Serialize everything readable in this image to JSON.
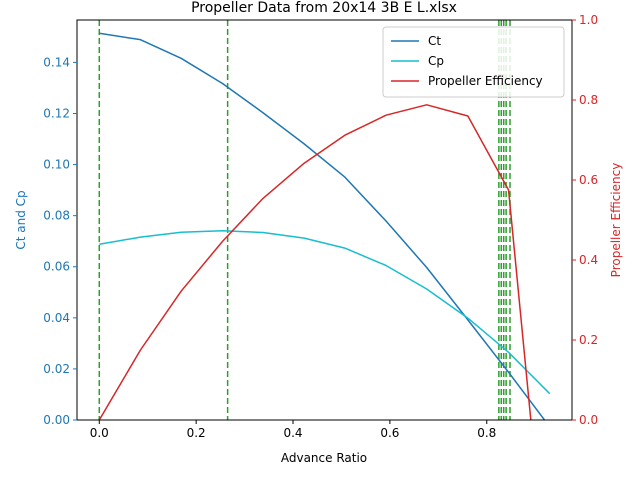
{
  "chart_data": {
    "type": "line",
    "title": "Propeller Data from 20x14 3B E L.xlsx",
    "xlabel": "Advance Ratio",
    "ylabel_left": "Ct and Cp",
    "ylabel_right": "Propeller Efficiency",
    "xlim": [
      -0.046,
      0.976
    ],
    "ylim_left": [
      0,
      0.1566
    ],
    "ylim_right": [
      0,
      1
    ],
    "x_ticks": [
      0.0,
      0.2,
      0.4,
      0.6,
      0.8
    ],
    "x_tick_labels": [
      "0.0",
      "0.2",
      "0.4",
      "0.6",
      "0.8"
    ],
    "y_left_ticks": [
      0.0,
      0.02,
      0.04,
      0.06,
      0.08,
      0.1,
      0.12,
      0.14
    ],
    "y_left_tick_labels": [
      "0.00",
      "0.02",
      "0.04",
      "0.06",
      "0.08",
      "0.10",
      "0.12",
      "0.14"
    ],
    "y_right_ticks": [
      0.0,
      0.2,
      0.4,
      0.6,
      0.8,
      1.0
    ],
    "y_right_tick_labels": [
      "0.0",
      "0.2",
      "0.4",
      "0.6",
      "0.8",
      "1.0"
    ],
    "grid": false,
    "legend_position": "upper-right",
    "colors": {
      "ct": "#1f77b4",
      "cp": "#17becf",
      "efficiency": "#d62728",
      "vlines": "#2ca02c",
      "left_axis": "#1f77b4",
      "right_axis": "#d62728",
      "text": "#000000"
    },
    "series": [
      {
        "name": "Ct",
        "axis": "left",
        "color": "#1f77b4",
        "x": [
          0.0,
          0.085,
          0.169,
          0.254,
          0.338,
          0.423,
          0.507,
          0.592,
          0.676,
          0.761,
          0.845,
          0.93
        ],
        "y": [
          0.1514,
          0.1489,
          0.1416,
          0.1318,
          0.1203,
          0.1081,
          0.0951,
          0.0779,
          0.0597,
          0.0392,
          0.0187,
          -0.0027
        ]
      },
      {
        "name": "Cp",
        "axis": "left",
        "color": "#17becf",
        "x": [
          0.0,
          0.085,
          0.169,
          0.254,
          0.338,
          0.423,
          0.507,
          0.592,
          0.676,
          0.761,
          0.845,
          0.93
        ],
        "y": [
          0.0688,
          0.0716,
          0.0735,
          0.0741,
          0.0734,
          0.0712,
          0.0673,
          0.0605,
          0.0513,
          0.0399,
          0.0265,
          0.0103
        ]
      },
      {
        "name": "Propeller Efficiency",
        "axis": "right",
        "color": "#d62728",
        "x": [
          0.0,
          0.085,
          0.169,
          0.254,
          0.338,
          0.423,
          0.507,
          0.592,
          0.676,
          0.761,
          0.845,
          0.891
        ],
        "y": [
          0.0,
          0.175,
          0.322,
          0.446,
          0.554,
          0.642,
          0.712,
          0.762,
          0.788,
          0.76,
          0.575,
          0.0
        ]
      }
    ],
    "vlines": [
      0.0,
      0.265,
      0.825,
      0.83,
      0.835,
      0.84,
      0.848
    ]
  }
}
